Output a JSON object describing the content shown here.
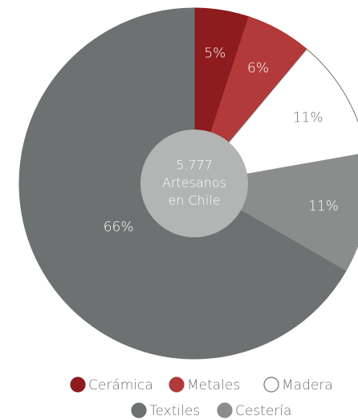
{
  "chart_data": {
    "type": "pie",
    "categories": [
      "Cerámica",
      "Metales",
      "Madera",
      "Cestería",
      "Textiles"
    ],
    "values": [
      5,
      6,
      11,
      11,
      66
    ],
    "value_labels": [
      "5%",
      "6%",
      "11%",
      "11%",
      "66%"
    ],
    "colors": [
      "#8e1b1e",
      "#b23a3a",
      "#ffffff",
      "#8b8d8d",
      "#6e7171"
    ],
    "center_label": [
      "5.777",
      "Artesanos",
      "en Chile"
    ]
  }
}
